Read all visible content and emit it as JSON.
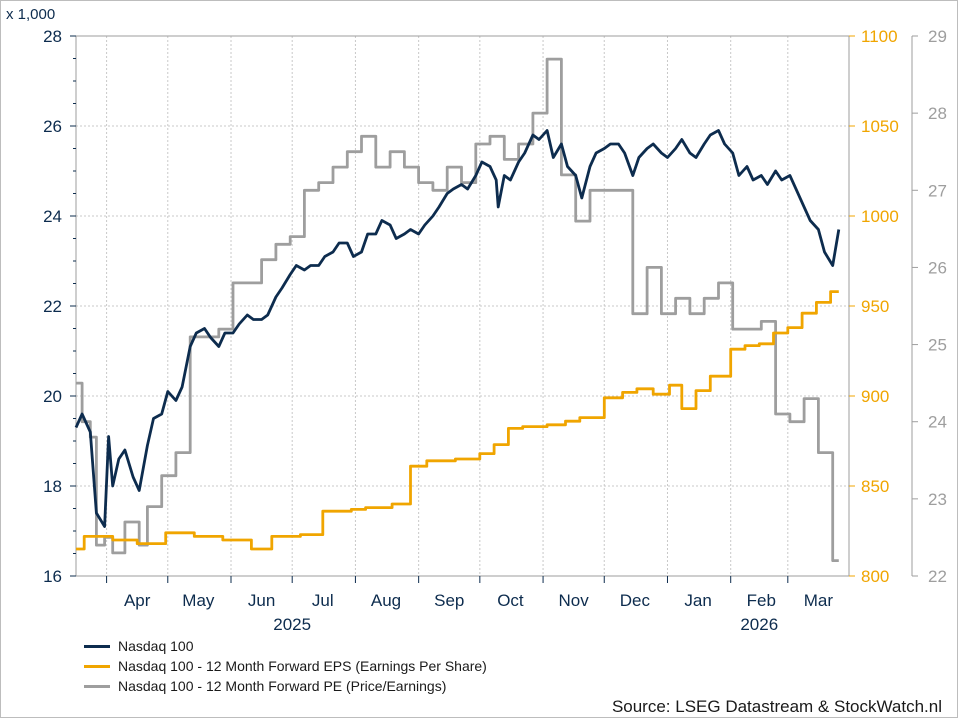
{
  "chart_data": {
    "type": "line",
    "title": "",
    "multiplier_label": "x 1,000",
    "source": "Source: LSEG Datastream & StockWatch.nl",
    "x_range": [
      "2025-03-17",
      "2026-03-31"
    ],
    "x_ticks": [
      {
        "label": "Apr",
        "date": "2025-04-16"
      },
      {
        "label": "May",
        "date": "2025-05-16"
      },
      {
        "label": "Jun",
        "date": "2025-06-16"
      },
      {
        "label": "Jul",
        "date": "2025-07-16"
      },
      {
        "label": "Aug",
        "date": "2025-08-16"
      },
      {
        "label": "Sep",
        "date": "2025-09-16"
      },
      {
        "label": "Oct",
        "date": "2025-10-16"
      },
      {
        "label": "Nov",
        "date": "2025-11-16"
      },
      {
        "label": "Dec",
        "date": "2025-12-16"
      },
      {
        "label": "Jan",
        "date": "2026-01-16"
      },
      {
        "label": "Feb",
        "date": "2026-02-16"
      },
      {
        "label": "Mar",
        "date": "2026-03-16"
      }
    ],
    "month_boundaries": [
      "2025-04-01",
      "2025-05-01",
      "2025-06-01",
      "2025-07-01",
      "2025-08-01",
      "2025-09-01",
      "2025-10-01",
      "2025-11-01",
      "2025-12-01",
      "2026-01-01",
      "2026-02-01",
      "2026-03-01"
    ],
    "year_labels": [
      {
        "label": "2025",
        "date": "2025-07-01"
      },
      {
        "label": "2026",
        "date": "2026-02-15"
      }
    ],
    "axes": {
      "left": {
        "range": [
          16,
          28
        ],
        "ticks": [
          16,
          18,
          20,
          22,
          24,
          26,
          28
        ],
        "color": "#0d2c4e"
      },
      "right_eps": {
        "range": [
          800,
          1100
        ],
        "ticks": [
          800,
          850,
          900,
          950,
          1000,
          1050,
          1100
        ],
        "color": "#f0a500"
      },
      "right_pe": {
        "range": [
          22,
          29
        ],
        "ticks": [
          22,
          23,
          24,
          25,
          26,
          27,
          28,
          29
        ],
        "color": "#9e9e9e"
      }
    },
    "grid": true,
    "legend_position": "bottom-left",
    "series": [
      {
        "name": "Nasdaq 100",
        "axis": "left",
        "color": "#0d2c4e",
        "step": false,
        "points": [
          [
            "2025-03-17",
            19.3
          ],
          [
            "2025-03-20",
            19.6
          ],
          [
            "2025-03-24",
            19.2
          ],
          [
            "2025-03-27",
            17.4
          ],
          [
            "2025-03-31",
            17.1
          ],
          [
            "2025-04-02",
            19.1
          ],
          [
            "2025-04-04",
            18.0
          ],
          [
            "2025-04-07",
            18.6
          ],
          [
            "2025-04-10",
            18.8
          ],
          [
            "2025-04-14",
            18.2
          ],
          [
            "2025-04-17",
            17.9
          ],
          [
            "2025-04-21",
            18.9
          ],
          [
            "2025-04-24",
            19.5
          ],
          [
            "2025-04-28",
            19.6
          ],
          [
            "2025-05-01",
            20.1
          ],
          [
            "2025-05-05",
            19.9
          ],
          [
            "2025-05-08",
            20.2
          ],
          [
            "2025-05-12",
            21.1
          ],
          [
            "2025-05-15",
            21.4
          ],
          [
            "2025-05-19",
            21.5
          ],
          [
            "2025-05-22",
            21.3
          ],
          [
            "2025-05-26",
            21.1
          ],
          [
            "2025-05-29",
            21.4
          ],
          [
            "2025-06-02",
            21.4
          ],
          [
            "2025-06-05",
            21.6
          ],
          [
            "2025-06-09",
            21.8
          ],
          [
            "2025-06-12",
            21.7
          ],
          [
            "2025-06-16",
            21.7
          ],
          [
            "2025-06-19",
            21.8
          ],
          [
            "2025-06-23",
            22.2
          ],
          [
            "2025-06-26",
            22.4
          ],
          [
            "2025-06-30",
            22.7
          ],
          [
            "2025-07-03",
            22.9
          ],
          [
            "2025-07-07",
            22.8
          ],
          [
            "2025-07-10",
            22.9
          ],
          [
            "2025-07-14",
            22.9
          ],
          [
            "2025-07-17",
            23.1
          ],
          [
            "2025-07-21",
            23.2
          ],
          [
            "2025-07-24",
            23.4
          ],
          [
            "2025-07-28",
            23.4
          ],
          [
            "2025-07-31",
            23.1
          ],
          [
            "2025-08-04",
            23.2
          ],
          [
            "2025-08-07",
            23.6
          ],
          [
            "2025-08-11",
            23.6
          ],
          [
            "2025-08-14",
            23.9
          ],
          [
            "2025-08-18",
            23.8
          ],
          [
            "2025-08-21",
            23.5
          ],
          [
            "2025-08-25",
            23.6
          ],
          [
            "2025-08-28",
            23.7
          ],
          [
            "2025-09-01",
            23.6
          ],
          [
            "2025-09-04",
            23.8
          ],
          [
            "2025-09-08",
            24.0
          ],
          [
            "2025-09-11",
            24.2
          ],
          [
            "2025-09-15",
            24.5
          ],
          [
            "2025-09-18",
            24.6
          ],
          [
            "2025-09-22",
            24.7
          ],
          [
            "2025-09-25",
            24.6
          ],
          [
            "2025-09-29",
            24.9
          ],
          [
            "2025-10-02",
            25.2
          ],
          [
            "2025-10-06",
            25.1
          ],
          [
            "2025-10-09",
            24.8
          ],
          [
            "2025-10-10",
            24.2
          ],
          [
            "2025-10-13",
            24.9
          ],
          [
            "2025-10-16",
            24.8
          ],
          [
            "2025-10-20",
            25.2
          ],
          [
            "2025-10-23",
            25.4
          ],
          [
            "2025-10-27",
            25.8
          ],
          [
            "2025-10-30",
            25.7
          ],
          [
            "2025-11-03",
            25.9
          ],
          [
            "2025-11-06",
            25.3
          ],
          [
            "2025-11-10",
            25.6
          ],
          [
            "2025-11-13",
            25.1
          ],
          [
            "2025-11-17",
            24.9
          ],
          [
            "2025-11-20",
            24.4
          ],
          [
            "2025-11-24",
            25.1
          ],
          [
            "2025-11-27",
            25.4
          ],
          [
            "2025-12-01",
            25.5
          ],
          [
            "2025-12-04",
            25.6
          ],
          [
            "2025-12-08",
            25.6
          ],
          [
            "2025-12-11",
            25.4
          ],
          [
            "2025-12-15",
            24.9
          ],
          [
            "2025-12-18",
            25.3
          ],
          [
            "2025-12-22",
            25.5
          ],
          [
            "2025-12-25",
            25.6
          ],
          [
            "2025-12-29",
            25.4
          ],
          [
            "2026-01-01",
            25.3
          ],
          [
            "2026-01-05",
            25.5
          ],
          [
            "2026-01-08",
            25.7
          ],
          [
            "2026-01-12",
            25.4
          ],
          [
            "2026-01-15",
            25.3
          ],
          [
            "2026-01-19",
            25.6
          ],
          [
            "2026-01-22",
            25.8
          ],
          [
            "2026-01-26",
            25.9
          ],
          [
            "2026-01-29",
            25.6
          ],
          [
            "2026-02-02",
            25.4
          ],
          [
            "2026-02-05",
            24.9
          ],
          [
            "2026-02-09",
            25.1
          ],
          [
            "2026-02-12",
            24.8
          ],
          [
            "2026-02-16",
            24.9
          ],
          [
            "2026-02-19",
            24.7
          ],
          [
            "2026-02-23",
            25.0
          ],
          [
            "2026-02-26",
            24.8
          ],
          [
            "2026-03-02",
            24.9
          ],
          [
            "2026-03-05",
            24.6
          ],
          [
            "2026-03-09",
            24.2
          ],
          [
            "2026-03-12",
            23.9
          ],
          [
            "2026-03-16",
            23.7
          ],
          [
            "2026-03-19",
            23.2
          ],
          [
            "2026-03-23",
            22.9
          ],
          [
            "2026-03-26",
            23.7
          ]
        ]
      },
      {
        "name": "Nasdaq 100 - 12 Month Forward EPS (Earnings Per Share)",
        "axis": "right_eps",
        "color": "#f0a500",
        "step": true,
        "points": [
          [
            "2025-03-17",
            815
          ],
          [
            "2025-03-21",
            822
          ],
          [
            "2025-04-04",
            820
          ],
          [
            "2025-04-16",
            818
          ],
          [
            "2025-04-30",
            824
          ],
          [
            "2025-05-14",
            822
          ],
          [
            "2025-05-28",
            820
          ],
          [
            "2025-06-11",
            815
          ],
          [
            "2025-06-21",
            822
          ],
          [
            "2025-07-05",
            823
          ],
          [
            "2025-07-16",
            836
          ],
          [
            "2025-07-30",
            837
          ],
          [
            "2025-08-06",
            838
          ],
          [
            "2025-08-19",
            840
          ],
          [
            "2025-08-28",
            861
          ],
          [
            "2025-09-05",
            864
          ],
          [
            "2025-09-19",
            865
          ],
          [
            "2025-10-01",
            868
          ],
          [
            "2025-10-08",
            873
          ],
          [
            "2025-10-15",
            882
          ],
          [
            "2025-10-22",
            883
          ],
          [
            "2025-11-03",
            884
          ],
          [
            "2025-11-12",
            886
          ],
          [
            "2025-11-19",
            888
          ],
          [
            "2025-12-01",
            899
          ],
          [
            "2025-12-10",
            902
          ],
          [
            "2025-12-17",
            904
          ],
          [
            "2025-12-25",
            901
          ],
          [
            "2026-01-02",
            906
          ],
          [
            "2026-01-08",
            893
          ],
          [
            "2026-01-15",
            903
          ],
          [
            "2026-01-22",
            911
          ],
          [
            "2026-02-01",
            926
          ],
          [
            "2026-02-08",
            928
          ],
          [
            "2026-02-15",
            929
          ],
          [
            "2026-02-22",
            935
          ],
          [
            "2026-03-01",
            938
          ],
          [
            "2026-03-08",
            946
          ],
          [
            "2026-03-15",
            952
          ],
          [
            "2026-03-22",
            958
          ],
          [
            "2026-03-26",
            958
          ]
        ]
      },
      {
        "name": "Nasdaq 100 - 12 Month Forward PE (Price/Earnings)",
        "axis": "right_pe",
        "color": "#9e9e9e",
        "step": true,
        "points": [
          [
            "2025-03-17",
            24.5
          ],
          [
            "2025-03-20",
            24.0
          ],
          [
            "2025-03-24",
            23.8
          ],
          [
            "2025-03-27",
            22.4
          ],
          [
            "2025-03-31",
            22.5
          ],
          [
            "2025-04-04",
            22.3
          ],
          [
            "2025-04-10",
            22.7
          ],
          [
            "2025-04-17",
            22.4
          ],
          [
            "2025-04-21",
            22.9
          ],
          [
            "2025-04-28",
            23.3
          ],
          [
            "2025-05-05",
            23.6
          ],
          [
            "2025-05-12",
            25.1
          ],
          [
            "2025-05-19",
            25.1
          ],
          [
            "2025-05-26",
            25.2
          ],
          [
            "2025-06-02",
            25.8
          ],
          [
            "2025-06-09",
            25.8
          ],
          [
            "2025-06-16",
            26.1
          ],
          [
            "2025-06-23",
            26.3
          ],
          [
            "2025-06-30",
            26.4
          ],
          [
            "2025-07-07",
            27.0
          ],
          [
            "2025-07-14",
            27.1
          ],
          [
            "2025-07-21",
            27.3
          ],
          [
            "2025-07-28",
            27.5
          ],
          [
            "2025-08-04",
            27.7
          ],
          [
            "2025-08-11",
            27.3
          ],
          [
            "2025-08-18",
            27.5
          ],
          [
            "2025-08-25",
            27.3
          ],
          [
            "2025-09-01",
            27.1
          ],
          [
            "2025-09-08",
            27.0
          ],
          [
            "2025-09-15",
            27.3
          ],
          [
            "2025-09-22",
            27.1
          ],
          [
            "2025-09-29",
            27.6
          ],
          [
            "2025-10-06",
            27.7
          ],
          [
            "2025-10-13",
            27.4
          ],
          [
            "2025-10-20",
            27.6
          ],
          [
            "2025-10-27",
            28.0
          ],
          [
            "2025-11-03",
            28.7
          ],
          [
            "2025-11-10",
            27.2
          ],
          [
            "2025-11-17",
            26.6
          ],
          [
            "2025-11-24",
            27.0
          ],
          [
            "2025-12-01",
            27.0
          ],
          [
            "2025-12-08",
            27.0
          ],
          [
            "2025-12-15",
            25.4
          ],
          [
            "2025-12-22",
            26.0
          ],
          [
            "2025-12-29",
            25.4
          ],
          [
            "2026-01-05",
            25.6
          ],
          [
            "2026-01-12",
            25.4
          ],
          [
            "2026-01-19",
            25.6
          ],
          [
            "2026-01-26",
            25.8
          ],
          [
            "2026-02-02",
            25.2
          ],
          [
            "2026-02-09",
            25.2
          ],
          [
            "2026-02-16",
            25.3
          ],
          [
            "2026-02-23",
            24.1
          ],
          [
            "2026-03-02",
            24.0
          ],
          [
            "2026-03-09",
            24.3
          ],
          [
            "2026-03-16",
            23.6
          ],
          [
            "2026-03-23",
            22.2
          ],
          [
            "2026-03-26",
            22.2
          ]
        ]
      }
    ]
  }
}
